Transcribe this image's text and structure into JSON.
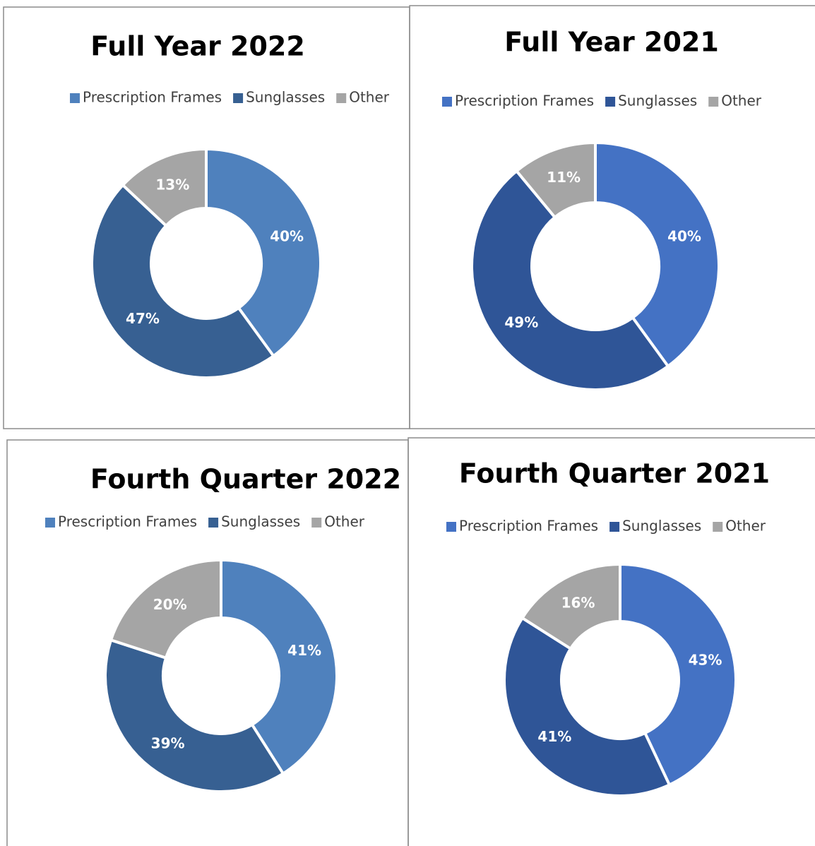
{
  "chart_data": [
    {
      "type": "donut",
      "title": "Full Year 2022",
      "categories": [
        "Prescription Frames",
        "Sunglasses",
        "Other"
      ],
      "values": [
        40,
        47,
        13
      ],
      "value_labels": [
        "40%",
        "47%",
        "13%"
      ],
      "colors": [
        "#4f81bd",
        "#376092",
        "#a5a5a5"
      ]
    },
    {
      "type": "donut",
      "title": "Full Year 2021",
      "categories": [
        "Prescription Frames",
        "Sunglasses",
        "Other"
      ],
      "values": [
        40,
        49,
        11
      ],
      "value_labels": [
        "40%",
        "49%",
        "11%"
      ],
      "colors": [
        "#4472c4",
        "#2f5597",
        "#a5a5a5"
      ]
    },
    {
      "type": "donut",
      "title": "Fourth Quarter 2022",
      "categories": [
        "Prescription Frames",
        "Sunglasses",
        "Other"
      ],
      "values": [
        41,
        39,
        20
      ],
      "value_labels": [
        "41%",
        "39%",
        "20%"
      ],
      "colors": [
        "#4f81bd",
        "#376092",
        "#a5a5a5"
      ]
    },
    {
      "type": "donut",
      "title": "Fourth Quarter 2021",
      "categories": [
        "Prescription Frames",
        "Sunglasses",
        "Other"
      ],
      "values": [
        43,
        41,
        16
      ],
      "value_labels": [
        "43%",
        "41%",
        "16%"
      ],
      "colors": [
        "#4472c4",
        "#2f5597",
        "#a5a5a5"
      ]
    }
  ]
}
